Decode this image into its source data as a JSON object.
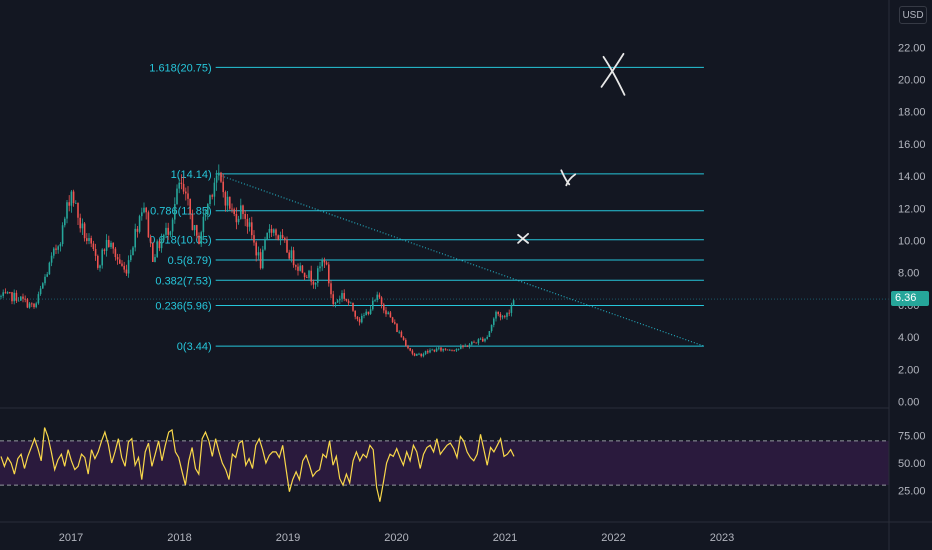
{
  "currency_button": "USD",
  "last_price_label": "6.36",
  "colors": {
    "background": "#131722",
    "fib": "#26c6da",
    "candle_up": "#26a69a",
    "candle_down": "#ef5350",
    "rsi_line": "#f9d84a",
    "rsi_band": "#2a1a3d",
    "markup": "#e8e8e8"
  },
  "chart_data": [
    {
      "type": "candlestick",
      "title": "",
      "xlabel": "",
      "ylabel": "",
      "currency": "USD",
      "x_ticks": [
        "2017",
        "2018",
        "2019",
        "2020",
        "2021",
        "2022",
        "2023"
      ],
      "y_ticks": [
        "0.00",
        "2.00",
        "4.00",
        "6.00",
        "8.00",
        "10.00",
        "12.00",
        "14.00",
        "16.00",
        "18.00",
        "20.00",
        "22.00"
      ],
      "ylim": [
        0,
        23.5
      ],
      "last_price": 6.36,
      "price_path": [
        {
          "date": "2016-07",
          "close": 6.5
        },
        {
          "date": "2016-09",
          "close": 5.8
        },
        {
          "date": "2016-10",
          "close": 7.5
        },
        {
          "date": "2016-12",
          "close": 10.5
        },
        {
          "date": "2017-01",
          "close": 13.2
        },
        {
          "date": "2017-02",
          "close": 11.0
        },
        {
          "date": "2017-04",
          "close": 8.5
        },
        {
          "date": "2017-05",
          "close": 10.0
        },
        {
          "date": "2017-07",
          "close": 8.0
        },
        {
          "date": "2017-09",
          "close": 12.5
        },
        {
          "date": "2017-10",
          "close": 9.0
        },
        {
          "date": "2017-12",
          "close": 11.0
        },
        {
          "date": "2018-01",
          "close": 13.5
        },
        {
          "date": "2018-02",
          "close": 12.0
        },
        {
          "date": "2018-03",
          "close": 9.8
        },
        {
          "date": "2018-05",
          "close": 14.14
        },
        {
          "date": "2018-07",
          "close": 11.5
        },
        {
          "date": "2018-08",
          "close": 12.0
        },
        {
          "date": "2018-10",
          "close": 8.5
        },
        {
          "date": "2018-11",
          "close": 11.0
        },
        {
          "date": "2019-02",
          "close": 8.5
        },
        {
          "date": "2019-04",
          "close": 7.5
        },
        {
          "date": "2019-05",
          "close": 9.0
        },
        {
          "date": "2019-06",
          "close": 6.0
        },
        {
          "date": "2019-07",
          "close": 6.7
        },
        {
          "date": "2019-09",
          "close": 5.0
        },
        {
          "date": "2019-11",
          "close": 6.5
        },
        {
          "date": "2020-01",
          "close": 4.5
        },
        {
          "date": "2020-03",
          "close": 2.8
        },
        {
          "date": "2020-05",
          "close": 3.2
        },
        {
          "date": "2020-08",
          "close": 3.3
        },
        {
          "date": "2020-11",
          "close": 4.0
        },
        {
          "date": "2020-12",
          "close": 5.5
        },
        {
          "date": "2021-01",
          "close": 5.2
        },
        {
          "date": "2021-02",
          "close": 6.36
        }
      ],
      "fibonacci_levels": [
        {
          "ratio": 1.618,
          "price": 20.75,
          "label": "1.618(20.75)"
        },
        {
          "ratio": 1,
          "price": 14.14,
          "label": "1(14.14)"
        },
        {
          "ratio": 0.786,
          "price": 11.85,
          "label": "0.786(11.85)"
        },
        {
          "ratio": 0.618,
          "price": 10.05,
          "label": "0.618(10.05)"
        },
        {
          "ratio": 0.5,
          "price": 8.79,
          "label": "0.5(8.79)"
        },
        {
          "ratio": 0.382,
          "price": 7.53,
          "label": "0.382(7.53)"
        },
        {
          "ratio": 0.236,
          "price": 5.96,
          "label": "0.236(5.96)"
        },
        {
          "ratio": 0,
          "price": 3.44,
          "label": "0(3.44)"
        }
      ],
      "fib_range": {
        "start": "2018-05",
        "end": "2022-11"
      },
      "trendline": {
        "start": {
          "date": "2018-05",
          "price": 14.14
        },
        "end": {
          "date": "2022-11",
          "price": 3.44
        }
      },
      "annotations": [
        {
          "mark": "X",
          "date": "2022-01",
          "price": 20.6
        },
        {
          "mark": "X",
          "date": "2021-08",
          "price": 13.8
        },
        {
          "mark": "x",
          "date": "2021-03",
          "price": 10.1
        }
      ]
    },
    {
      "type": "line",
      "title": "",
      "y_ticks": [
        "25.00",
        "50.00",
        "75.00"
      ],
      "ylim": [
        10,
        90
      ],
      "band": [
        30,
        70
      ],
      "series": [
        {
          "values": [
            56,
            47,
            55,
            50,
            40,
            54,
            58,
            45,
            56,
            64,
            72,
            63,
            52,
            82,
            74,
            60,
            44,
            53,
            58,
            47,
            62,
            52,
            44,
            47,
            58,
            55,
            40,
            62,
            54,
            60,
            70,
            78,
            67,
            50,
            60,
            72,
            55,
            47,
            69,
            72,
            48,
            55,
            35,
            60,
            68,
            47,
            58,
            70,
            52,
            66,
            78,
            80,
            60,
            55,
            42,
            30,
            52,
            64,
            45,
            40,
            72,
            78,
            70,
            56,
            72,
            60,
            50,
            44,
            35,
            58,
            55,
            68,
            70,
            48,
            54,
            45,
            66,
            72,
            62,
            50,
            57,
            60,
            60,
            55,
            66,
            45,
            24,
            35,
            42,
            35,
            52,
            57,
            48,
            38,
            42,
            44,
            58,
            55,
            70,
            48,
            56,
            36,
            30,
            40,
            32,
            52,
            60,
            52,
            58,
            55,
            66,
            62,
            28,
            15,
            32,
            50,
            58,
            56,
            63,
            55,
            48,
            60,
            52,
            66,
            60,
            45,
            58,
            64,
            66,
            60,
            72,
            58,
            62,
            66,
            68,
            63,
            55,
            74,
            70,
            60,
            55,
            52,
            58,
            76,
            62,
            48,
            64,
            60,
            66,
            72,
            56,
            58,
            62,
            56
          ]
        }
      ]
    }
  ]
}
